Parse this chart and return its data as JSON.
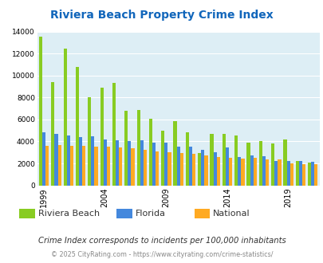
{
  "title": "Riviera Beach Property Crime Index",
  "title_color": "#1166bb",
  "bg_color": "#ddeef5",
  "years": [
    1999,
    2000,
    2001,
    2002,
    2003,
    2004,
    2005,
    2006,
    2007,
    2008,
    2009,
    2010,
    2011,
    2012,
    2013,
    2014,
    2015,
    2016,
    2017,
    2018,
    2019,
    2020,
    2021
  ],
  "riviera_beach": [
    13500,
    9400,
    12450,
    10800,
    8000,
    8900,
    9300,
    6800,
    6900,
    6050,
    4950,
    5850,
    4850,
    2950,
    4700,
    4700,
    4550,
    3900,
    4050,
    3800,
    4150,
    2250,
    2100
  ],
  "florida": [
    4850,
    4700,
    4550,
    4400,
    4450,
    4150,
    4100,
    4000,
    4100,
    3900,
    3900,
    3550,
    3500,
    3250,
    3050,
    3450,
    2600,
    2700,
    2650,
    2200,
    2250,
    2200,
    2150
  ],
  "national": [
    3600,
    3700,
    3600,
    3600,
    3550,
    3500,
    3450,
    3350,
    3250,
    3100,
    3050,
    2950,
    2900,
    2750,
    2600,
    2500,
    2450,
    2500,
    2400,
    2400,
    2000,
    1950,
    1900
  ],
  "riviera_color": "#88cc22",
  "florida_color": "#4488dd",
  "national_color": "#ffaa22",
  "yticks": [
    0,
    2000,
    4000,
    6000,
    8000,
    10000,
    12000,
    14000
  ],
  "xtick_labels": [
    "1999",
    "2004",
    "2009",
    "2014",
    "2019"
  ],
  "note": "Crime Index corresponds to incidents per 100,000 inhabitants",
  "footer": "© 2025 CityRating.com - https://www.cityrating.com/crime-statistics/",
  "note_color": "#333333",
  "footer_color": "#888888",
  "fig_bg": "#ffffff",
  "legend_text_color": "#333333"
}
